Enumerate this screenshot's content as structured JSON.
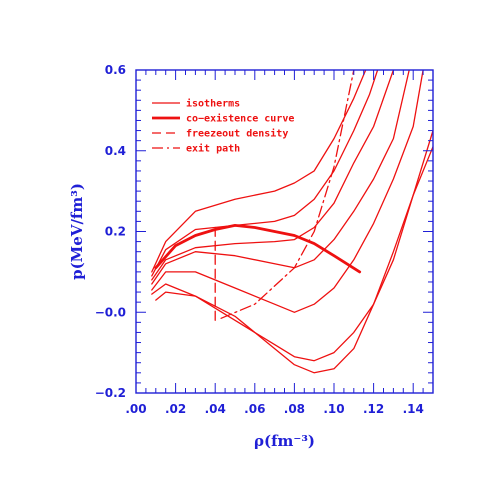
{
  "colors": {
    "axis": "#1f1fd6",
    "curve": "#ee1111",
    "text": "#1f1fd6",
    "legend_text": "#ee1111"
  },
  "chart_data": {
    "type": "line",
    "xlabel": "ρ(fm⁻³)",
    "ylabel": "p(MeV/fm³)",
    "xlim": [
      0.0,
      0.15
    ],
    "ylim": [
      -0.2,
      0.6
    ],
    "x_ticks": [
      0.0,
      0.02,
      0.04,
      0.06,
      0.08,
      0.1,
      0.12,
      0.14
    ],
    "x_tick_labels": [
      ".00",
      ".02",
      ".04",
      ".06",
      ".08",
      ".10",
      ".12",
      ".14"
    ],
    "y_ticks": [
      -0.2,
      0.0,
      0.2,
      0.4,
      0.6
    ],
    "y_tick_labels": [
      "−0.2",
      "−0.0",
      "0.2",
      "0.4",
      "0.6"
    ],
    "legend_position": "top-left",
    "legend": [
      {
        "label": "isotherms",
        "style": "solid"
      },
      {
        "label": "co−existence curve",
        "style": "thick"
      },
      {
        "label": "freezeout density",
        "style": "dashed"
      },
      {
        "label": "exit path",
        "style": "dashdot"
      }
    ],
    "series": [
      {
        "style": "solid",
        "points": [
          [
            0.008,
            0.1
          ],
          [
            0.015,
            0.175
          ],
          [
            0.03,
            0.25
          ],
          [
            0.05,
            0.28
          ],
          [
            0.07,
            0.3
          ],
          [
            0.08,
            0.32
          ],
          [
            0.09,
            0.35
          ],
          [
            0.1,
            0.43
          ],
          [
            0.11,
            0.53
          ],
          [
            0.116,
            0.6
          ]
        ]
      },
      {
        "style": "solid",
        "points": [
          [
            0.008,
            0.09
          ],
          [
            0.015,
            0.155
          ],
          [
            0.03,
            0.205
          ],
          [
            0.05,
            0.215
          ],
          [
            0.07,
            0.225
          ],
          [
            0.08,
            0.24
          ],
          [
            0.09,
            0.28
          ],
          [
            0.1,
            0.35
          ],
          [
            0.11,
            0.45
          ],
          [
            0.118,
            0.54
          ],
          [
            0.122,
            0.6
          ]
        ]
      },
      {
        "style": "solid",
        "points": [
          [
            0.008,
            0.08
          ],
          [
            0.015,
            0.13
          ],
          [
            0.03,
            0.16
          ],
          [
            0.05,
            0.17
          ],
          [
            0.07,
            0.175
          ],
          [
            0.08,
            0.18
          ],
          [
            0.09,
            0.21
          ],
          [
            0.1,
            0.27
          ],
          [
            0.11,
            0.37
          ],
          [
            0.12,
            0.46
          ],
          [
            0.13,
            0.6
          ]
        ]
      },
      {
        "style": "solid",
        "points": [
          [
            0.008,
            0.07
          ],
          [
            0.015,
            0.12
          ],
          [
            0.03,
            0.15
          ],
          [
            0.05,
            0.14
          ],
          [
            0.07,
            0.12
          ],
          [
            0.08,
            0.11
          ],
          [
            0.09,
            0.13
          ],
          [
            0.1,
            0.18
          ],
          [
            0.11,
            0.25
          ],
          [
            0.12,
            0.33
          ],
          [
            0.13,
            0.43
          ],
          [
            0.138,
            0.6
          ]
        ]
      },
      {
        "style": "solid",
        "points": [
          [
            0.008,
            0.055
          ],
          [
            0.015,
            0.1
          ],
          [
            0.03,
            0.1
          ],
          [
            0.05,
            0.06
          ],
          [
            0.07,
            0.02
          ],
          [
            0.08,
            0.0
          ],
          [
            0.09,
            0.02
          ],
          [
            0.1,
            0.06
          ],
          [
            0.11,
            0.13
          ],
          [
            0.12,
            0.22
          ],
          [
            0.13,
            0.33
          ],
          [
            0.14,
            0.46
          ],
          [
            0.145,
            0.6
          ]
        ]
      },
      {
        "style": "solid",
        "points": [
          [
            0.008,
            0.045
          ],
          [
            0.015,
            0.07
          ],
          [
            0.03,
            0.04
          ],
          [
            0.05,
            -0.02
          ],
          [
            0.07,
            -0.08
          ],
          [
            0.08,
            -0.11
          ],
          [
            0.09,
            -0.12
          ],
          [
            0.1,
            -0.1
          ],
          [
            0.11,
            -0.05
          ],
          [
            0.12,
            0.02
          ],
          [
            0.13,
            0.13
          ],
          [
            0.14,
            0.29
          ],
          [
            0.15,
            0.45
          ]
        ]
      },
      {
        "style": "solid",
        "points": [
          [
            0.01,
            0.03
          ],
          [
            0.015,
            0.05
          ],
          [
            0.03,
            0.04
          ],
          [
            0.05,
            -0.01
          ],
          [
            0.07,
            -0.09
          ],
          [
            0.08,
            -0.13
          ],
          [
            0.09,
            -0.15
          ],
          [
            0.1,
            -0.14
          ],
          [
            0.11,
            -0.09
          ],
          [
            0.12,
            0.02
          ],
          [
            0.13,
            0.15
          ],
          [
            0.14,
            0.29
          ],
          [
            0.15,
            0.41
          ]
        ]
      },
      {
        "style": "thick",
        "points": [
          [
            0.01,
            0.11
          ],
          [
            0.02,
            0.165
          ],
          [
            0.03,
            0.19
          ],
          [
            0.04,
            0.205
          ],
          [
            0.05,
            0.215
          ],
          [
            0.06,
            0.21
          ],
          [
            0.07,
            0.2
          ],
          [
            0.08,
            0.19
          ],
          [
            0.09,
            0.17
          ],
          [
            0.1,
            0.14
          ],
          [
            0.113,
            0.1
          ]
        ]
      },
      {
        "style": "dashed",
        "points": [
          [
            0.04,
            -0.02
          ],
          [
            0.04,
            0.21
          ]
        ]
      },
      {
        "style": "dashdot",
        "points": [
          [
            0.043,
            -0.015
          ],
          [
            0.06,
            0.02
          ],
          [
            0.08,
            0.11
          ],
          [
            0.09,
            0.2
          ],
          [
            0.1,
            0.36
          ],
          [
            0.11,
            0.6
          ]
        ]
      }
    ]
  }
}
